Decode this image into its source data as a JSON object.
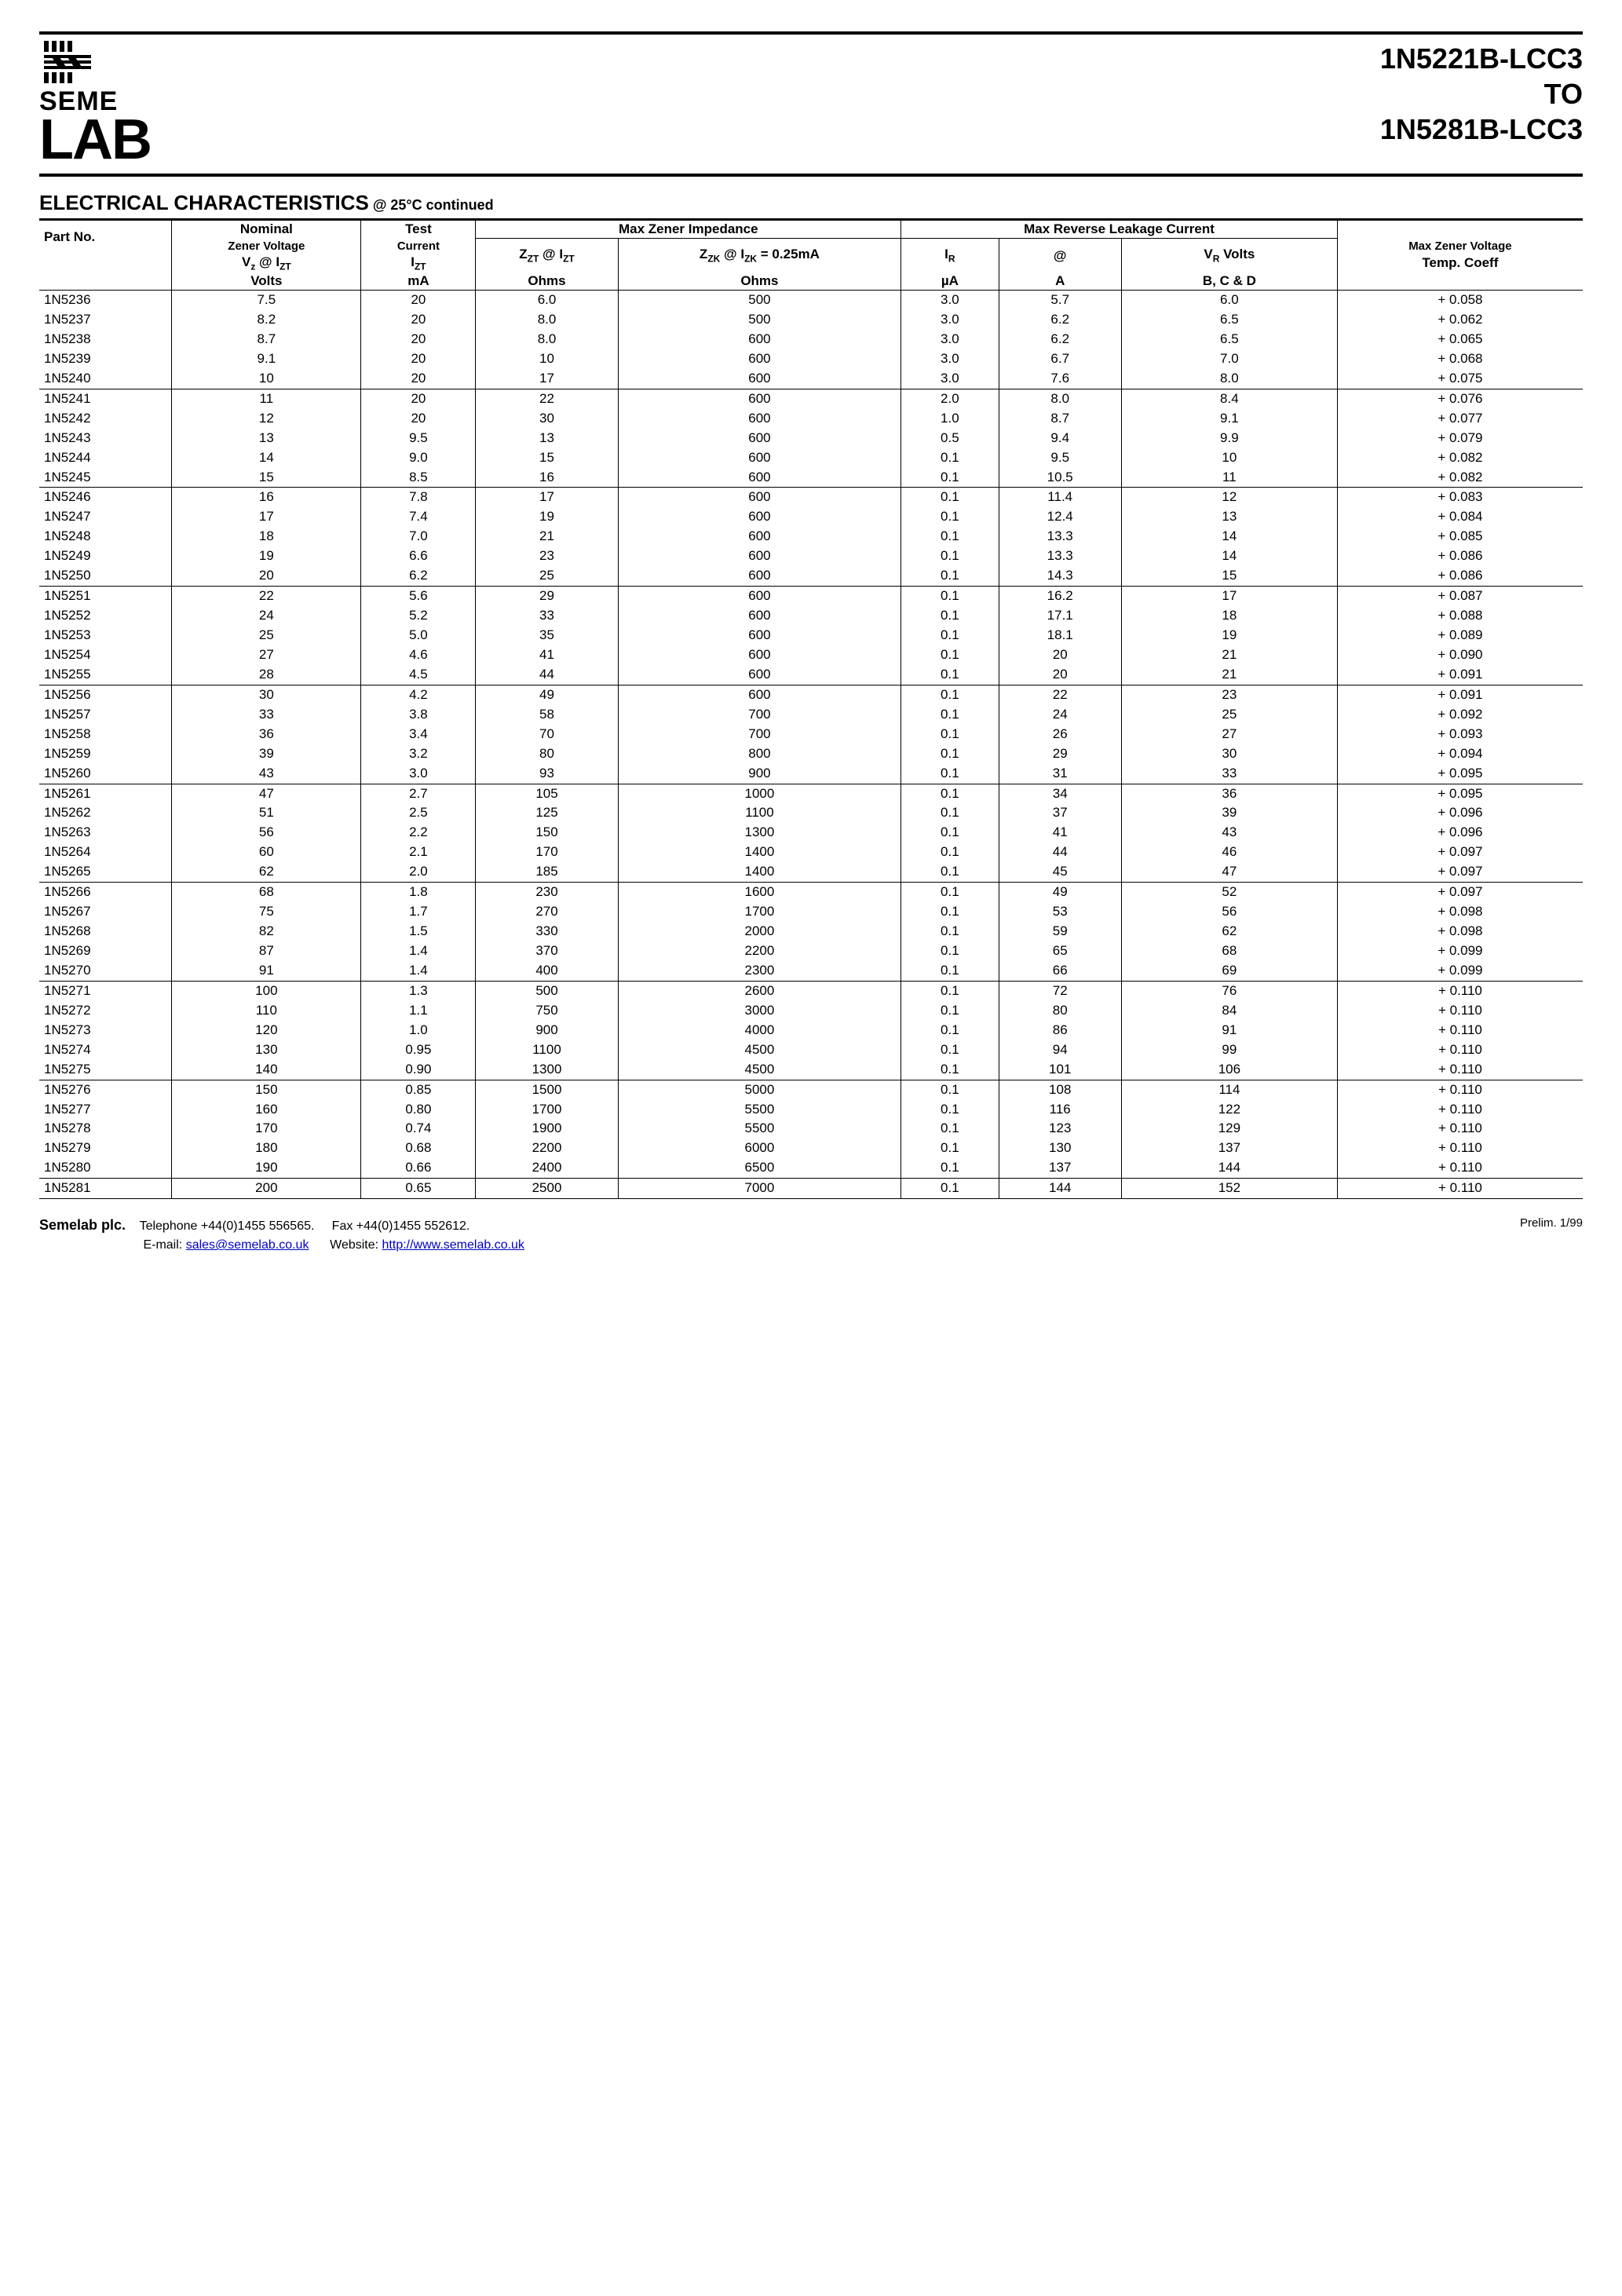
{
  "title": {
    "line1": "1N5221B-LCC3",
    "line2": "TO",
    "line3": "1N5281B-LCC3"
  },
  "logo": {
    "seme": "SEME",
    "lab": "LAB"
  },
  "section": {
    "heading": "ELECTRICAL CHARACTERISTICS",
    "at": " @ 25°C continued"
  },
  "columns": {
    "part": "Part No.",
    "nominal_l1": "Nominal",
    "nominal_l2": "Zener Voltage",
    "nominal_l3": "V",
    "nominal_l3_sub": "z",
    "nominal_l3_at": " @ I",
    "nominal_l3_sub2": "ZT",
    "nominal_l4": "Volts",
    "test_l1": "Test",
    "test_l2": "Current",
    "test_l3": "I",
    "test_l3_sub": "ZT",
    "test_l4": "mA",
    "imp_head": "Max Zener Impedance",
    "imp_c1_l1a": "Z",
    "imp_c1_l1a_sub": "ZT",
    "imp_c1_l1b": " @ I",
    "imp_c1_l1b_sub": "ZT",
    "imp_c1_l2": "Ohms",
    "imp_c2_l1a": "Z",
    "imp_c2_l1a_sub": "ZK",
    "imp_c2_l1b": " @ I",
    "imp_c2_l1b_sub": "ZK",
    "imp_c2_l1c": "  = 0.25mA",
    "imp_c2_l2": "Ohms",
    "leak_head": "Max Reverse Leakage Current",
    "leak_c1_l1": "I",
    "leak_c1_l1_sub": "R",
    "leak_c1_l2": "µA",
    "leak_c2_l1": "@",
    "leak_c2_l2": "A",
    "leak_c3_l1a": "V",
    "leak_c3_l1a_sub": "R",
    "leak_c3_l1b": "  Volts",
    "leak_c3_l2": "B, C & D",
    "temp_l1": "Max Zener Voltage",
    "temp_l2": "Temp. Coeff"
  },
  "group_size": 5,
  "rows": [
    {
      "p": "1N5236",
      "vz": "7.5",
      "izt": "20",
      "zzt": "6.0",
      "zzk": "500",
      "ir": "3.0",
      "at": "5.7",
      "vr": "6.0",
      "tc": "+ 0.058"
    },
    {
      "p": "1N5237",
      "vz": "8.2",
      "izt": "20",
      "zzt": "8.0",
      "zzk": "500",
      "ir": "3.0",
      "at": "6.2",
      "vr": "6.5",
      "tc": "+ 0.062"
    },
    {
      "p": "1N5238",
      "vz": "8.7",
      "izt": "20",
      "zzt": "8.0",
      "zzk": "600",
      "ir": "3.0",
      "at": "6.2",
      "vr": "6.5",
      "tc": "+ 0.065"
    },
    {
      "p": "1N5239",
      "vz": "9.1",
      "izt": "20",
      "zzt": "10",
      "zzk": "600",
      "ir": "3.0",
      "at": "6.7",
      "vr": "7.0",
      "tc": "+ 0.068"
    },
    {
      "p": "1N5240",
      "vz": "10",
      "izt": "20",
      "zzt": "17",
      "zzk": "600",
      "ir": "3.0",
      "at": "7.6",
      "vr": "8.0",
      "tc": "+ 0.075"
    },
    {
      "p": "1N5241",
      "vz": "11",
      "izt": "20",
      "zzt": "22",
      "zzk": "600",
      "ir": "2.0",
      "at": "8.0",
      "vr": "8.4",
      "tc": "+ 0.076"
    },
    {
      "p": "1N5242",
      "vz": "12",
      "izt": "20",
      "zzt": "30",
      "zzk": "600",
      "ir": "1.0",
      "at": "8.7",
      "vr": "9.1",
      "tc": "+ 0.077"
    },
    {
      "p": "1N5243",
      "vz": "13",
      "izt": "9.5",
      "zzt": "13",
      "zzk": "600",
      "ir": "0.5",
      "at": "9.4",
      "vr": "9.9",
      "tc": "+ 0.079"
    },
    {
      "p": "1N5244",
      "vz": "14",
      "izt": "9.0",
      "zzt": "15",
      "zzk": "600",
      "ir": "0.1",
      "at": "9.5",
      "vr": "10",
      "tc": "+ 0.082"
    },
    {
      "p": "1N5245",
      "vz": "15",
      "izt": "8.5",
      "zzt": "16",
      "zzk": "600",
      "ir": "0.1",
      "at": "10.5",
      "vr": "11",
      "tc": "+ 0.082"
    },
    {
      "p": "1N5246",
      "vz": "16",
      "izt": "7.8",
      "zzt": "17",
      "zzk": "600",
      "ir": "0.1",
      "at": "11.4",
      "vr": "12",
      "tc": "+ 0.083"
    },
    {
      "p": "1N5247",
      "vz": "17",
      "izt": "7.4",
      "zzt": "19",
      "zzk": "600",
      "ir": "0.1",
      "at": "12.4",
      "vr": "13",
      "tc": "+ 0.084"
    },
    {
      "p": "1N5248",
      "vz": "18",
      "izt": "7.0",
      "zzt": "21",
      "zzk": "600",
      "ir": "0.1",
      "at": "13.3",
      "vr": "14",
      "tc": "+ 0.085"
    },
    {
      "p": "1N5249",
      "vz": "19",
      "izt": "6.6",
      "zzt": "23",
      "zzk": "600",
      "ir": "0.1",
      "at": "13.3",
      "vr": "14",
      "tc": "+ 0.086"
    },
    {
      "p": "1N5250",
      "vz": "20",
      "izt": "6.2",
      "zzt": "25",
      "zzk": "600",
      "ir": "0.1",
      "at": "14.3",
      "vr": "15",
      "tc": "+ 0.086"
    },
    {
      "p": "1N5251",
      "vz": "22",
      "izt": "5.6",
      "zzt": "29",
      "zzk": "600",
      "ir": "0.1",
      "at": "16.2",
      "vr": "17",
      "tc": "+ 0.087"
    },
    {
      "p": "1N5252",
      "vz": "24",
      "izt": "5.2",
      "zzt": "33",
      "zzk": "600",
      "ir": "0.1",
      "at": "17.1",
      "vr": "18",
      "tc": "+ 0.088"
    },
    {
      "p": "1N5253",
      "vz": "25",
      "izt": "5.0",
      "zzt": "35",
      "zzk": "600",
      "ir": "0.1",
      "at": "18.1",
      "vr": "19",
      "tc": "+ 0.089"
    },
    {
      "p": "1N5254",
      "vz": "27",
      "izt": "4.6",
      "zzt": "41",
      "zzk": "600",
      "ir": "0.1",
      "at": "20",
      "vr": "21",
      "tc": "+ 0.090"
    },
    {
      "p": "1N5255",
      "vz": "28",
      "izt": "4.5",
      "zzt": "44",
      "zzk": "600",
      "ir": "0.1",
      "at": "20",
      "vr": "21",
      "tc": "+ 0.091"
    },
    {
      "p": "1N5256",
      "vz": "30",
      "izt": "4.2",
      "zzt": "49",
      "zzk": "600",
      "ir": "0.1",
      "at": "22",
      "vr": "23",
      "tc": "+ 0.091"
    },
    {
      "p": "1N5257",
      "vz": "33",
      "izt": "3.8",
      "zzt": "58",
      "zzk": "700",
      "ir": "0.1",
      "at": "24",
      "vr": "25",
      "tc": "+ 0.092"
    },
    {
      "p": "1N5258",
      "vz": "36",
      "izt": "3.4",
      "zzt": "70",
      "zzk": "700",
      "ir": "0.1",
      "at": "26",
      "vr": "27",
      "tc": "+ 0.093"
    },
    {
      "p": "1N5259",
      "vz": "39",
      "izt": "3.2",
      "zzt": "80",
      "zzk": "800",
      "ir": "0.1",
      "at": "29",
      "vr": "30",
      "tc": "+ 0.094"
    },
    {
      "p": "1N5260",
      "vz": "43",
      "izt": "3.0",
      "zzt": "93",
      "zzk": "900",
      "ir": "0.1",
      "at": "31",
      "vr": "33",
      "tc": "+ 0.095"
    },
    {
      "p": "1N5261",
      "vz": "47",
      "izt": "2.7",
      "zzt": "105",
      "zzk": "1000",
      "ir": "0.1",
      "at": "34",
      "vr": "36",
      "tc": "+ 0.095"
    },
    {
      "p": "1N5262",
      "vz": "51",
      "izt": "2.5",
      "zzt": "125",
      "zzk": "1100",
      "ir": "0.1",
      "at": "37",
      "vr": "39",
      "tc": "+ 0.096"
    },
    {
      "p": "1N5263",
      "vz": "56",
      "izt": "2.2",
      "zzt": "150",
      "zzk": "1300",
      "ir": "0.1",
      "at": "41",
      "vr": "43",
      "tc": "+ 0.096"
    },
    {
      "p": "1N5264",
      "vz": "60",
      "izt": "2.1",
      "zzt": "170",
      "zzk": "1400",
      "ir": "0.1",
      "at": "44",
      "vr": "46",
      "tc": "+ 0.097"
    },
    {
      "p": "1N5265",
      "vz": "62",
      "izt": "2.0",
      "zzt": "185",
      "zzk": "1400",
      "ir": "0.1",
      "at": "45",
      "vr": "47",
      "tc": "+ 0.097"
    },
    {
      "p": "1N5266",
      "vz": "68",
      "izt": "1.8",
      "zzt": "230",
      "zzk": "1600",
      "ir": "0.1",
      "at": "49",
      "vr": "52",
      "tc": "+ 0.097"
    },
    {
      "p": "1N5267",
      "vz": "75",
      "izt": "1.7",
      "zzt": "270",
      "zzk": "1700",
      "ir": "0.1",
      "at": "53",
      "vr": "56",
      "tc": "+ 0.098"
    },
    {
      "p": "1N5268",
      "vz": "82",
      "izt": "1.5",
      "zzt": "330",
      "zzk": "2000",
      "ir": "0.1",
      "at": "59",
      "vr": "62",
      "tc": "+ 0.098"
    },
    {
      "p": "1N5269",
      "vz": "87",
      "izt": "1.4",
      "zzt": "370",
      "zzk": "2200",
      "ir": "0.1",
      "at": "65",
      "vr": "68",
      "tc": "+ 0.099"
    },
    {
      "p": "1N5270",
      "vz": "91",
      "izt": "1.4",
      "zzt": "400",
      "zzk": "2300",
      "ir": "0.1",
      "at": "66",
      "vr": "69",
      "tc": "+ 0.099"
    },
    {
      "p": "1N5271",
      "vz": "100",
      "izt": "1.3",
      "zzt": "500",
      "zzk": "2600",
      "ir": "0.1",
      "at": "72",
      "vr": "76",
      "tc": "+ 0.110"
    },
    {
      "p": "1N5272",
      "vz": "110",
      "izt": "1.1",
      "zzt": "750",
      "zzk": "3000",
      "ir": "0.1",
      "at": "80",
      "vr": "84",
      "tc": "+ 0.110"
    },
    {
      "p": "1N5273",
      "vz": "120",
      "izt": "1.0",
      "zzt": "900",
      "zzk": "4000",
      "ir": "0.1",
      "at": "86",
      "vr": "91",
      "tc": "+ 0.110"
    },
    {
      "p": "1N5274",
      "vz": "130",
      "izt": "0.95",
      "zzt": "1100",
      "zzk": "4500",
      "ir": "0.1",
      "at": "94",
      "vr": "99",
      "tc": "+ 0.110"
    },
    {
      "p": "1N5275",
      "vz": "140",
      "izt": "0.90",
      "zzt": "1300",
      "zzk": "4500",
      "ir": "0.1",
      "at": "101",
      "vr": "106",
      "tc": "+ 0.110"
    },
    {
      "p": "1N5276",
      "vz": "150",
      "izt": "0.85",
      "zzt": "1500",
      "zzk": "5000",
      "ir": "0.1",
      "at": "108",
      "vr": "114",
      "tc": "+ 0.110"
    },
    {
      "p": "1N5277",
      "vz": "160",
      "izt": "0.80",
      "zzt": "1700",
      "zzk": "5500",
      "ir": "0.1",
      "at": "116",
      "vr": "122",
      "tc": "+ 0.110"
    },
    {
      "p": "1N5278",
      "vz": "170",
      "izt": "0.74",
      "zzt": "1900",
      "zzk": "5500",
      "ir": "0.1",
      "at": "123",
      "vr": "129",
      "tc": "+ 0.110"
    },
    {
      "p": "1N5279",
      "vz": "180",
      "izt": "0.68",
      "zzt": "2200",
      "zzk": "6000",
      "ir": "0.1",
      "at": "130",
      "vr": "137",
      "tc": "+ 0.110"
    },
    {
      "p": "1N5280",
      "vz": "190",
      "izt": "0.66",
      "zzt": "2400",
      "zzk": "6500",
      "ir": "0.1",
      "at": "137",
      "vr": "144",
      "tc": "+ 0.110"
    },
    {
      "p": "1N5281",
      "vz": "200",
      "izt": "0.65",
      "zzt": "2500",
      "zzk": "7000",
      "ir": "0.1",
      "at": "144",
      "vr": "152",
      "tc": "+ 0.110"
    }
  ],
  "footer": {
    "company": "Semelab plc.",
    "tel_label": "Telephone ",
    "tel": "+44(0)1455 556565.",
    "fax_label": "Fax ",
    "fax": "+44(0)1455 552612.",
    "email_label": "E-mail: ",
    "email": "sales@semelab.co.uk",
    "web_label": "Website: ",
    "web": "http://www.semelab.co.uk",
    "prelim": "Prelim. 1/99"
  }
}
